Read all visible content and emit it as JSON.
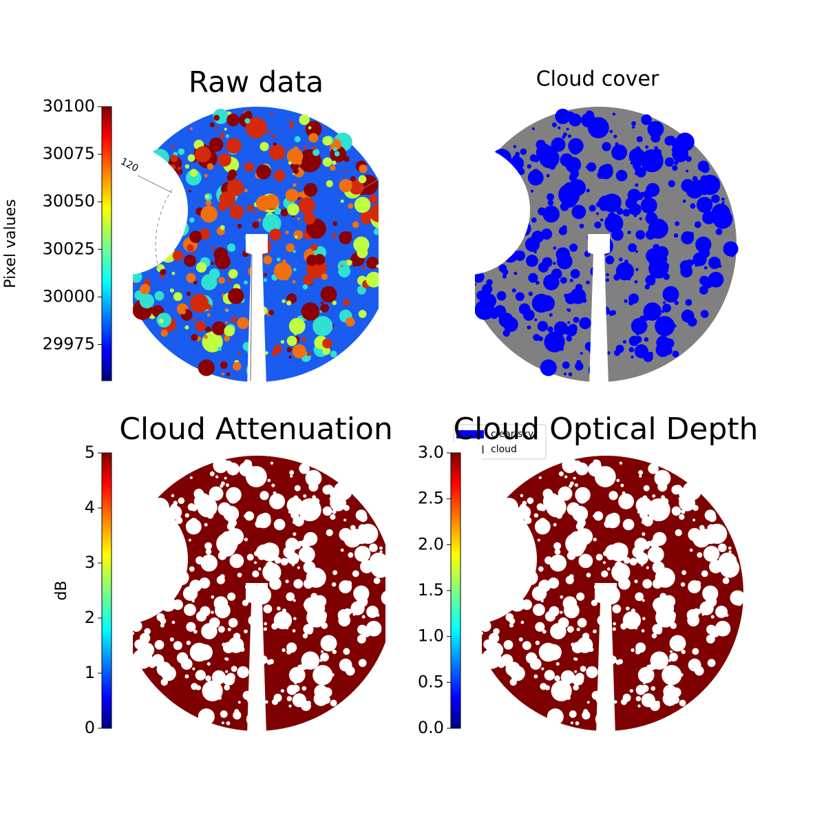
{
  "chart_data": [
    {
      "type": "image",
      "title": "Raw data",
      "colormap": "jet",
      "colorbar_label": "Pixel values",
      "clim": [
        29956,
        30100
      ],
      "ticks": [
        29975,
        30000,
        30025,
        30050,
        30075,
        30100
      ],
      "annotation": "120"
    },
    {
      "type": "image",
      "title": "Cloud cover",
      "series": [
        {
          "name": "clear sky",
          "color": "#0000ff"
        },
        {
          "name": "cloud",
          "color": "#808080"
        }
      ]
    },
    {
      "type": "image",
      "title": "Cloud Attenuation",
      "colormap": "jet",
      "colorbar_label": "dB",
      "clim": [
        0,
        5
      ],
      "ticks": [
        0,
        1,
        2,
        3,
        4,
        5
      ]
    },
    {
      "type": "image",
      "title": "Cloud Optical Depth",
      "colormap": "jet",
      "clim": [
        0,
        3
      ],
      "ticks": [
        {
          "value": 0,
          "label": "0.0"
        },
        {
          "value": 0.5,
          "label": "0.5"
        },
        {
          "value": 1,
          "label": "1.0"
        },
        {
          "value": 1.5,
          "label": "1.5"
        },
        {
          "value": 2,
          "label": "2.0"
        },
        {
          "value": 2.5,
          "label": "2.5"
        },
        {
          "value": 3,
          "label": "3.0"
        }
      ]
    }
  ]
}
